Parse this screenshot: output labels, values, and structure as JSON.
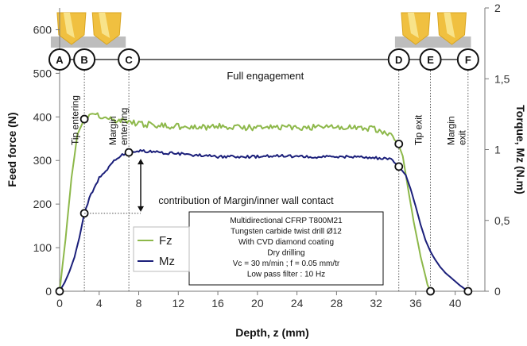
{
  "chart_data": {
    "type": "line",
    "xlabel": "Depth, z (mm)",
    "ylabel": "Feed force (N)",
    "y2label": "Torque, Mz (N.m)",
    "xlim": [
      0,
      43
    ],
    "ylim": [
      0,
      650
    ],
    "y2lim": [
      0,
      2
    ],
    "x_ticks": [
      "0",
      "4",
      "8",
      "12",
      "16",
      "20",
      "24",
      "28",
      "32",
      "36",
      "40"
    ],
    "y_ticks": [
      "0",
      "100",
      "200",
      "300",
      "400",
      "500",
      "600"
    ],
    "y2_ticks": [
      "0",
      "0,5",
      "1",
      "1,5",
      "2"
    ],
    "series": [
      {
        "name": "Fz",
        "axis": "left",
        "color": "#8db84a",
        "x": [
          0,
          0.6,
          1.2,
          1.8,
          2.5,
          3,
          4,
          5,
          6,
          7,
          8,
          10,
          12,
          14,
          16,
          18,
          20,
          22,
          24,
          26,
          28,
          30,
          32,
          33.5,
          34.2,
          34.7,
          35.2,
          35.8,
          36.5,
          37.2,
          37.5
        ],
        "y": [
          0,
          120,
          260,
          360,
          395,
          405,
          402,
          395,
          392,
          388,
          385,
          380,
          378,
          375,
          378,
          376,
          375,
          378,
          375,
          377,
          378,
          375,
          372,
          355,
          340,
          310,
          240,
          160,
          80,
          15,
          0
        ]
      },
      {
        "name": "Mz",
        "axis": "right",
        "color": "#1b1f7a",
        "x": [
          0,
          0.5,
          1,
          1.5,
          2,
          2.5,
          3,
          4,
          5,
          6,
          7,
          8,
          10,
          12,
          14,
          16,
          18,
          20,
          22,
          24,
          26,
          28,
          30,
          32,
          33.5,
          34.3,
          35,
          35.5,
          36,
          36.5,
          37,
          37.5,
          38,
          38.5,
          39,
          39.5,
          40,
          40.5,
          41,
          41.3
        ],
        "y": [
          0,
          0.06,
          0.14,
          0.24,
          0.38,
          0.55,
          0.66,
          0.8,
          0.88,
          0.95,
          0.98,
          0.99,
          0.98,
          0.97,
          0.96,
          0.95,
          0.95,
          0.95,
          0.96,
          0.95,
          0.95,
          0.95,
          0.95,
          0.94,
          0.93,
          0.88,
          0.82,
          0.72,
          0.6,
          0.47,
          0.36,
          0.28,
          0.22,
          0.17,
          0.13,
          0.1,
          0.07,
          0.04,
          0.015,
          0
        ]
      }
    ],
    "markers": [
      {
        "series": "Fz",
        "x": 2.5,
        "y": 395
      },
      {
        "series": "Fz",
        "x": 34.3,
        "y": 338
      },
      {
        "series": "Mz",
        "x": 2.5,
        "y2": 0.55
      },
      {
        "series": "Mz",
        "x": 7,
        "y2": 0.98
      },
      {
        "series": "Mz",
        "x": 34.3,
        "y2": 0.88
      },
      {
        "series": "axis",
        "x": 0,
        "y": 0
      },
      {
        "series": "axis",
        "x": 37.5,
        "y": 0
      },
      {
        "series": "axis",
        "x": 41.3,
        "y": 0
      }
    ],
    "phases": [
      {
        "label": "A",
        "x": 0
      },
      {
        "label": "B",
        "x": 2.5
      },
      {
        "label": "C",
        "x": 7
      },
      {
        "label": "D",
        "x": 34.3
      },
      {
        "label": "E",
        "x": 37.5
      },
      {
        "label": "F",
        "x": 41.3
      }
    ],
    "annotations": {
      "tip_entering": "Tip entering",
      "margin_entering": "Margin\nenterring",
      "full_engagement": "Full engagement",
      "tip_exit": "Tip exit",
      "margin_exit": "Margin\nexit",
      "contribution": "contribution of Margin/inner wall contact"
    },
    "info_box": [
      "Multidirectional CFRP T800M21",
      "Tungsten carbide twist drill Ø12",
      "With CVD diamond coating",
      "Dry drilling",
      "Vc = 30 m/min ; f = 0.05 mm/tr",
      "Low pass filter : 10 Hz"
    ],
    "legend": {
      "position": "bottom-center-left"
    },
    "grid": false
  }
}
